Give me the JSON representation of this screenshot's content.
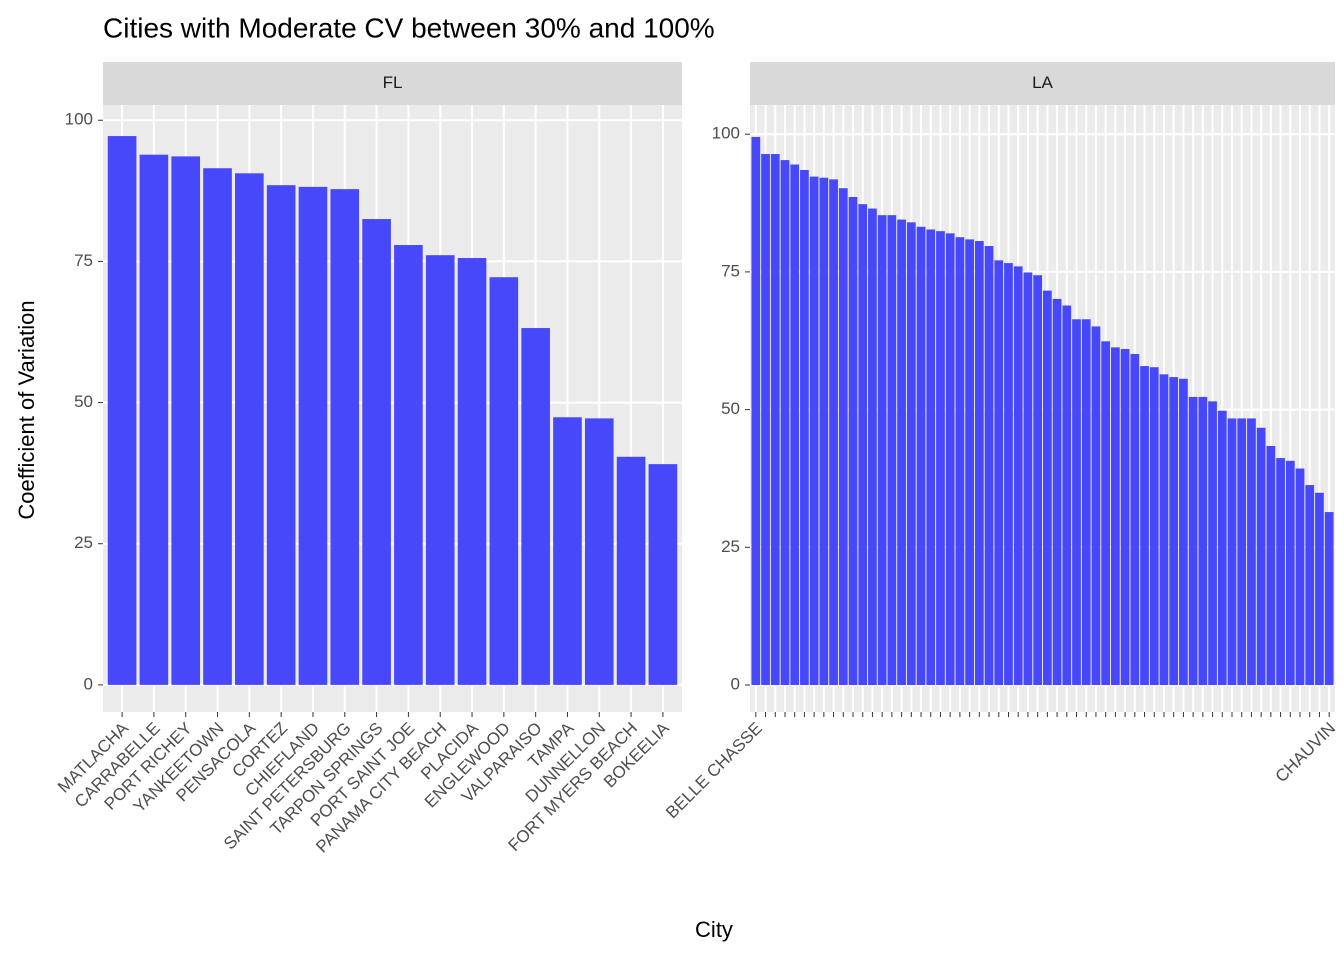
{
  "chart_data": {
    "type": "bar",
    "title": "Cities with  Moderate CV between 30% and 100%",
    "x_label": "City",
    "y_label": "Coefficient of Variation",
    "color": "#4848fb",
    "grid": true,
    "facets": [
      {
        "label": "FL",
        "categories": [
          "MATLACHA",
          "CARRABELLE",
          "PORT RICHEY",
          "YANKEETOWN",
          "PENSACOLA",
          "CORTEZ",
          "CHIEFLAND",
          "SAINT PETERSBURG",
          "TARPON SPRINGS",
          "PORT SAINT JOE",
          "PANAMA CITY BEACH",
          "PLACIDA",
          "ENGLEWOOD",
          "VALPARAISO",
          "TAMPA",
          "DUNNELLON",
          "FORT MYERS BEACH",
          "BOKEELIA"
        ],
        "values": [
          97.2,
          93.9,
          93.6,
          91.5,
          90.6,
          88.5,
          88.2,
          87.8,
          82.5,
          77.9,
          76.1,
          75.6,
          72.2,
          63.2,
          47.4,
          47.2,
          40.4,
          39.1
        ],
        "ylim": [
          -4.8,
          102.7
        ],
        "yticks": [
          0,
          25,
          50,
          75,
          100
        ]
      },
      {
        "label": "LA",
        "categories": [
          "BELLE CHASSE",
          null,
          null,
          null,
          null,
          null,
          null,
          null,
          null,
          null,
          null,
          null,
          null,
          null,
          null,
          null,
          null,
          null,
          null,
          null,
          null,
          null,
          null,
          null,
          null,
          null,
          null,
          null,
          null,
          null,
          null,
          null,
          null,
          null,
          null,
          null,
          null,
          null,
          null,
          null,
          null,
          null,
          null,
          null,
          null,
          null,
          null,
          null,
          null,
          null,
          null,
          null,
          null,
          null,
          null,
          null,
          null,
          null,
          null,
          "CHAUVIN"
        ],
        "values": [
          99.5,
          96.4,
          96.4,
          95.3,
          94.5,
          93.5,
          92.3,
          92.1,
          91.8,
          90.2,
          88.6,
          87.3,
          86.5,
          85.3,
          85.3,
          84.5,
          84.0,
          83.2,
          82.7,
          82.4,
          82.0,
          81.3,
          80.9,
          80.6,
          79.7,
          77.1,
          76.6,
          76.0,
          74.9,
          74.4,
          71.6,
          70.1,
          68.9,
          66.4,
          66.4,
          65.1,
          62.4,
          61.3,
          61.0,
          60.1,
          57.9,
          57.7,
          56.4,
          55.9,
          55.6,
          52.3,
          52.3,
          51.5,
          49.8,
          48.4,
          48.4,
          48.4,
          46.7,
          43.4,
          41.2,
          40.7,
          39.3,
          36.3,
          34.9,
          31.4
        ],
        "ylim": [
          -4.9,
          105.3
        ],
        "yticks": [
          0,
          25,
          50,
          75,
          100
        ]
      }
    ]
  }
}
